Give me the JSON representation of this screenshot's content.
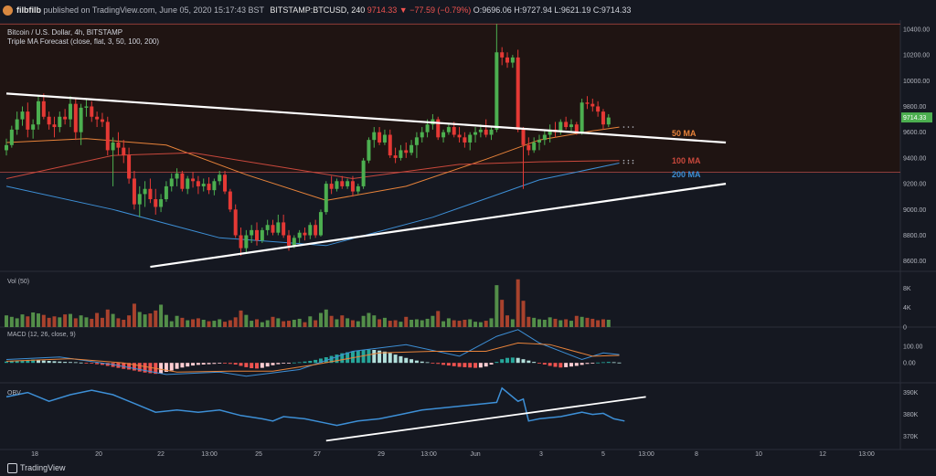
{
  "header": {
    "user": "filbfilb",
    "published_text": "published on TradingView.com, June 05, 2020 15:17:43 BST",
    "symbol": "BITSTAMP:BTCUSD, 240",
    "change": "9714.33 ▼ −77.59 (−0.79%)",
    "ohlc": "O:9696.06 H:9727.94 L:9621.19 C:9714.33"
  },
  "footer": {
    "brand": "TradingView"
  },
  "legend": {
    "title": "Bitcoin / U.S. Dollar, 4h, BITSTAMP",
    "indicator": "Triple MA Forecast (close, flat, 3, 50, 100, 200)"
  },
  "colors": {
    "bg": "#151821",
    "up": "#4caf50",
    "down": "#e53935",
    "ma50": "#e8833a",
    "ma100": "#c9483c",
    "ma200": "#3d8fd6",
    "macd_line": "#3d8fd6",
    "signal_line": "#e8833a",
    "obv_line": "#3d8fd6"
  },
  "chart_data": {
    "type": "candlestick",
    "price_axis": {
      "ticks": [
        "10400.00",
        "10200.00",
        "10000.00",
        "9800.00",
        "9600.00",
        "9400.00",
        "9200.00",
        "9000.00",
        "8800.00",
        "8600.00"
      ],
      "range": [
        8520,
        10470
      ]
    },
    "current_price": "9714.33",
    "x_labels": [
      "18",
      "20",
      "22",
      "13:00",
      "25",
      "27",
      "29",
      "13:00",
      "Jun",
      "3",
      "5",
      "13:00",
      "8",
      "10",
      "12",
      "13:00"
    ],
    "annotations": {
      "ma50": "50 MA",
      "ma100": "100 MA",
      "ma200": "200 MA"
    },
    "candles": [
      [
        9460,
        9550,
        9420,
        9500
      ],
      [
        9500,
        9650,
        9480,
        9620
      ],
      [
        9620,
        9760,
        9580,
        9700
      ],
      [
        9700,
        9800,
        9650,
        9760
      ],
      [
        9760,
        9830,
        9560,
        9620
      ],
      [
        9620,
        9700,
        9550,
        9660
      ],
      [
        9660,
        9880,
        9620,
        9840
      ],
      [
        9840,
        9900,
        9700,
        9720
      ],
      [
        9720,
        9760,
        9620,
        9660
      ],
      [
        9660,
        9720,
        9560,
        9640
      ],
      [
        9640,
        9760,
        9600,
        9720
      ],
      [
        9720,
        9780,
        9660,
        9700
      ],
      [
        9700,
        9880,
        9640,
        9820
      ],
      [
        9820,
        9870,
        9540,
        9600
      ],
      [
        9600,
        9820,
        9500,
        9790
      ],
      [
        9790,
        9860,
        9720,
        9800
      ],
      [
        9800,
        9840,
        9680,
        9720
      ],
      [
        9720,
        9760,
        9640,
        9700
      ],
      [
        9700,
        9750,
        9640,
        9680
      ],
      [
        9680,
        9720,
        9420,
        9460
      ],
      [
        9460,
        9560,
        9180,
        9520
      ],
      [
        9520,
        9600,
        9420,
        9480
      ],
      [
        9480,
        9540,
        9360,
        9420
      ],
      [
        9420,
        9480,
        9200,
        9240
      ],
      [
        9240,
        9300,
        9000,
        9040
      ],
      [
        9040,
        9180,
        8940,
        9120
      ],
      [
        9120,
        9220,
        9020,
        9160
      ],
      [
        9160,
        9240,
        9050,
        9080
      ],
      [
        9080,
        9160,
        8960,
        9020
      ],
      [
        9020,
        9120,
        8980,
        9080
      ],
      [
        9080,
        9220,
        9060,
        9180
      ],
      [
        9180,
        9280,
        9140,
        9240
      ],
      [
        9240,
        9320,
        9180,
        9280
      ],
      [
        9280,
        9300,
        9140,
        9160
      ],
      [
        9160,
        9260,
        9120,
        9240
      ],
      [
        9240,
        9290,
        9170,
        9220
      ],
      [
        9220,
        9260,
        9120,
        9180
      ],
      [
        9180,
        9240,
        9140,
        9200
      ],
      [
        9200,
        9250,
        9120,
        9150
      ],
      [
        9150,
        9240,
        9110,
        9220
      ],
      [
        9220,
        9300,
        9190,
        9270
      ],
      [
        9270,
        9300,
        9120,
        9140
      ],
      [
        9140,
        9160,
        8980,
        9000
      ],
      [
        9000,
        9040,
        8780,
        8800
      ],
      [
        8800,
        8860,
        8640,
        8700
      ],
      [
        8700,
        8840,
        8660,
        8800
      ],
      [
        8800,
        8880,
        8740,
        8840
      ],
      [
        8840,
        8900,
        8720,
        8760
      ],
      [
        8760,
        8860,
        8740,
        8840
      ],
      [
        8840,
        8920,
        8800,
        8880
      ],
      [
        8880,
        8920,
        8800,
        8820
      ],
      [
        8820,
        8960,
        8800,
        8900
      ],
      [
        8900,
        8960,
        8780,
        8800
      ],
      [
        8800,
        8840,
        8680,
        8720
      ],
      [
        8720,
        8800,
        8700,
        8780
      ],
      [
        8780,
        8840,
        8740,
        8820
      ],
      [
        8820,
        8860,
        8760,
        8800
      ],
      [
        8800,
        8900,
        8770,
        8880
      ],
      [
        8880,
        8920,
        8780,
        8800
      ],
      [
        8800,
        9000,
        8790,
        8980
      ],
      [
        8980,
        9220,
        8960,
        9200
      ],
      [
        9200,
        9260,
        9120,
        9160
      ],
      [
        9160,
        9240,
        9140,
        9220
      ],
      [
        9220,
        9260,
        9160,
        9180
      ],
      [
        9180,
        9240,
        9160,
        9220
      ],
      [
        9220,
        9260,
        9100,
        9140
      ],
      [
        9140,
        9200,
        9120,
        9180
      ],
      [
        9180,
        9400,
        9160,
        9380
      ],
      [
        9380,
        9560,
        9360,
        9540
      ],
      [
        9540,
        9640,
        9480,
        9600
      ],
      [
        9600,
        9640,
        9500,
        9520
      ],
      [
        9520,
        9620,
        9500,
        9580
      ],
      [
        9580,
        9620,
        9400,
        9420
      ],
      [
        9420,
        9480,
        9360,
        9400
      ],
      [
        9400,
        9500,
        9380,
        9460
      ],
      [
        9460,
        9520,
        9400,
        9440
      ],
      [
        9440,
        9540,
        9420,
        9500
      ],
      [
        9500,
        9600,
        9400,
        9560
      ],
      [
        9560,
        9640,
        9520,
        9600
      ],
      [
        9600,
        9700,
        9560,
        9660
      ],
      [
        9660,
        9740,
        9620,
        9700
      ],
      [
        9700,
        9720,
        9540,
        9560
      ],
      [
        9560,
        9620,
        9520,
        9600
      ],
      [
        9600,
        9660,
        9580,
        9640
      ],
      [
        9640,
        9680,
        9560,
        9580
      ],
      [
        9580,
        9640,
        9520,
        9560
      ],
      [
        9560,
        9600,
        9480,
        9520
      ],
      [
        9520,
        9600,
        9460,
        9580
      ],
      [
        9580,
        9640,
        9520,
        9600
      ],
      [
        9600,
        9660,
        9560,
        9620
      ],
      [
        9620,
        9700,
        9560,
        9580
      ],
      [
        9580,
        9640,
        9540,
        9620
      ],
      [
        9620,
        10440,
        9600,
        10220
      ],
      [
        10220,
        10260,
        10120,
        10180
      ],
      [
        10180,
        10220,
        10100,
        10140
      ],
      [
        10140,
        10200,
        10100,
        10180
      ],
      [
        10180,
        10240,
        9600,
        9620
      ],
      [
        9620,
        9640,
        9160,
        9500
      ],
      [
        9500,
        9560,
        9420,
        9460
      ],
      [
        9460,
        9560,
        9440,
        9520
      ],
      [
        9520,
        9580,
        9460,
        9540
      ],
      [
        9540,
        9620,
        9500,
        9580
      ],
      [
        9580,
        9660,
        9520,
        9620
      ],
      [
        9620,
        9680,
        9560,
        9600
      ],
      [
        9600,
        9700,
        9580,
        9680
      ],
      [
        9680,
        9720,
        9620,
        9640
      ],
      [
        9640,
        9700,
        9600,
        9660
      ],
      [
        9660,
        9680,
        9580,
        9600
      ],
      [
        9600,
        9860,
        9580,
        9830
      ],
      [
        9830,
        9880,
        9780,
        9820
      ],
      [
        9820,
        9860,
        9760,
        9800
      ],
      [
        9800,
        9840,
        9720,
        9760
      ],
      [
        9760,
        9780,
        9620,
        9660
      ],
      [
        9660,
        9740,
        9640,
        9714
      ]
    ],
    "ma50": [
      [
        0,
        9520
      ],
      [
        15,
        9550
      ],
      [
        30,
        9500
      ],
      [
        45,
        9270
      ],
      [
        60,
        9070
      ],
      [
        75,
        9180
      ],
      [
        90,
        9390
      ],
      [
        100,
        9540
      ],
      [
        110,
        9610
      ],
      [
        115,
        9640
      ]
    ],
    "ma100": [
      [
        0,
        9240
      ],
      [
        20,
        9420
      ],
      [
        35,
        9440
      ],
      [
        50,
        9340
      ],
      [
        65,
        9240
      ],
      [
        85,
        9350
      ],
      [
        100,
        9370
      ],
      [
        115,
        9380
      ]
    ],
    "ma200": [
      [
        0,
        9180
      ],
      [
        20,
        9000
      ],
      [
        40,
        8780
      ],
      [
        60,
        8720
      ],
      [
        80,
        8940
      ],
      [
        100,
        9230
      ],
      [
        115,
        9360
      ]
    ],
    "resistance_line": {
      "from": [
        0,
        9900
      ],
      "to": [
        135,
        9520
      ]
    },
    "support_line": {
      "from": [
        27,
        8555
      ],
      "to": [
        135,
        9200
      ]
    },
    "range_lines": [
      10440,
      9290
    ],
    "volume": {
      "label": "Vol (50)",
      "axis_ticks": [
        "8K",
        "4K",
        "0"
      ],
      "range": [
        0,
        10500
      ],
      "values": [
        2400,
        2100,
        1800,
        2600,
        2200,
        3000,
        2800,
        2500,
        1900,
        2200,
        2000,
        2600,
        2700,
        1800,
        2400,
        2000,
        1700,
        2900,
        1900,
        3600,
        2700,
        1800,
        1500,
        2400,
        4800,
        3100,
        2600,
        2800,
        3400,
        4600,
        2500,
        1200,
        2300,
        1900,
        1400,
        1600,
        1800,
        1500,
        1200,
        1300,
        1600,
        1100,
        1400,
        2000,
        3400,
        2500,
        1300,
        1600,
        1000,
        1400,
        2100,
        1800,
        1200,
        1300,
        1500,
        1700,
        1000,
        2200,
        1400,
        2900,
        3600,
        2300,
        1600,
        2400,
        1800,
        1400,
        1200,
        2300,
        2900,
        2400,
        1600,
        1900,
        1300,
        1400,
        1100,
        2100,
        1500,
        1600,
        1400,
        1700,
        2300,
        3300,
        1200,
        1800,
        1400,
        1300,
        1500,
        1600,
        1100,
        1000,
        1300,
        1800,
        8600,
        5600,
        2400,
        1600,
        9800,
        5400,
        2100,
        1900,
        1600,
        1500,
        2000,
        1700,
        1400,
        1600,
        1300,
        2300,
        2100,
        1900,
        1700,
        1400,
        1600,
        1500
      ]
    },
    "macd": {
      "label": "MACD (12, 26, close, 9)",
      "axis_ticks": [
        "100.00",
        "0.00"
      ],
      "range": [
        -120,
        210
      ],
      "hist": [
        8,
        10,
        12,
        14,
        18,
        20,
        16,
        14,
        12,
        10,
        8,
        6,
        5,
        4,
        2,
        -2,
        -4,
        -8,
        -12,
        -18,
        -24,
        -30,
        -36,
        -40,
        -46,
        -52,
        -58,
        -62,
        -66,
        -62,
        -54,
        -46,
        -36,
        -28,
        -22,
        -16,
        -12,
        -10,
        -8,
        -6,
        -4,
        -4,
        -6,
        -10,
        -18,
        -26,
        -32,
        -34,
        -30,
        -22,
        -14,
        -8,
        -4,
        -2,
        2,
        4,
        8,
        12,
        18,
        26,
        34,
        42,
        50,
        58,
        64,
        70,
        74,
        78,
        80,
        78,
        74,
        68,
        60,
        50,
        40,
        30,
        22,
        14,
        8,
        4,
        -2,
        -6,
        -12,
        -16,
        -20,
        -24,
        -26,
        -28,
        -30,
        -28,
        -22,
        -10,
        6,
        22,
        30,
        32,
        30,
        22,
        14,
        6,
        -2,
        -10,
        -18,
        -24,
        -28,
        -26,
        -22,
        -18,
        -12,
        -6,
        -2,
        2,
        4,
        6,
        4,
        2
      ],
      "macd_line": [
        [
          0,
          20
        ],
        [
          10,
          35
        ],
        [
          20,
          -10
        ],
        [
          30,
          -70
        ],
        [
          40,
          -55
        ],
        [
          45,
          -80
        ],
        [
          55,
          -40
        ],
        [
          65,
          70
        ],
        [
          75,
          110
        ],
        [
          85,
          40
        ],
        [
          92,
          160
        ],
        [
          96,
          200
        ],
        [
          100,
          120
        ],
        [
          108,
          20
        ],
        [
          112,
          60
        ],
        [
          115,
          50
        ]
      ],
      "signal_line": [
        [
          0,
          10
        ],
        [
          12,
          25
        ],
        [
          22,
          0
        ],
        [
          32,
          -55
        ],
        [
          42,
          -50
        ],
        [
          50,
          -50
        ],
        [
          58,
          -10
        ],
        [
          70,
          60
        ],
        [
          80,
          70
        ],
        [
          90,
          70
        ],
        [
          96,
          120
        ],
        [
          102,
          110
        ],
        [
          110,
          40
        ],
        [
          115,
          45
        ]
      ]
    },
    "obv": {
      "label": "OBV",
      "axis_ticks": [
        "390K",
        "380K",
        "370K"
      ],
      "range": [
        364000,
        394000
      ],
      "line": [
        [
          0,
          388000
        ],
        [
          4,
          390000
        ],
        [
          8,
          386000
        ],
        [
          12,
          389000
        ],
        [
          16,
          391000
        ],
        [
          20,
          389000
        ],
        [
          24,
          385000
        ],
        [
          28,
          381000
        ],
        [
          32,
          382000
        ],
        [
          36,
          381000
        ],
        [
          40,
          382000
        ],
        [
          44,
          379500
        ],
        [
          48,
          378000
        ],
        [
          50,
          377000
        ],
        [
          52,
          379000
        ],
        [
          56,
          378000
        ],
        [
          60,
          376000
        ],
        [
          62,
          375000
        ],
        [
          66,
          377000
        ],
        [
          70,
          378000
        ],
        [
          74,
          380000
        ],
        [
          78,
          382000
        ],
        [
          82,
          383000
        ],
        [
          86,
          384000
        ],
        [
          90,
          385000
        ],
        [
          92,
          385500
        ],
        [
          93,
          392000
        ],
        [
          96,
          386000
        ],
        [
          97,
          387000
        ],
        [
          98,
          377000
        ],
        [
          100,
          378000
        ],
        [
          104,
          379000
        ],
        [
          108,
          381000
        ],
        [
          110,
          380000
        ],
        [
          112,
          380500
        ],
        [
          114,
          378000
        ],
        [
          116,
          377000
        ]
      ],
      "trend_line": {
        "from": [
          60,
          368000
        ],
        "to": [
          120,
          388000
        ]
      }
    }
  }
}
